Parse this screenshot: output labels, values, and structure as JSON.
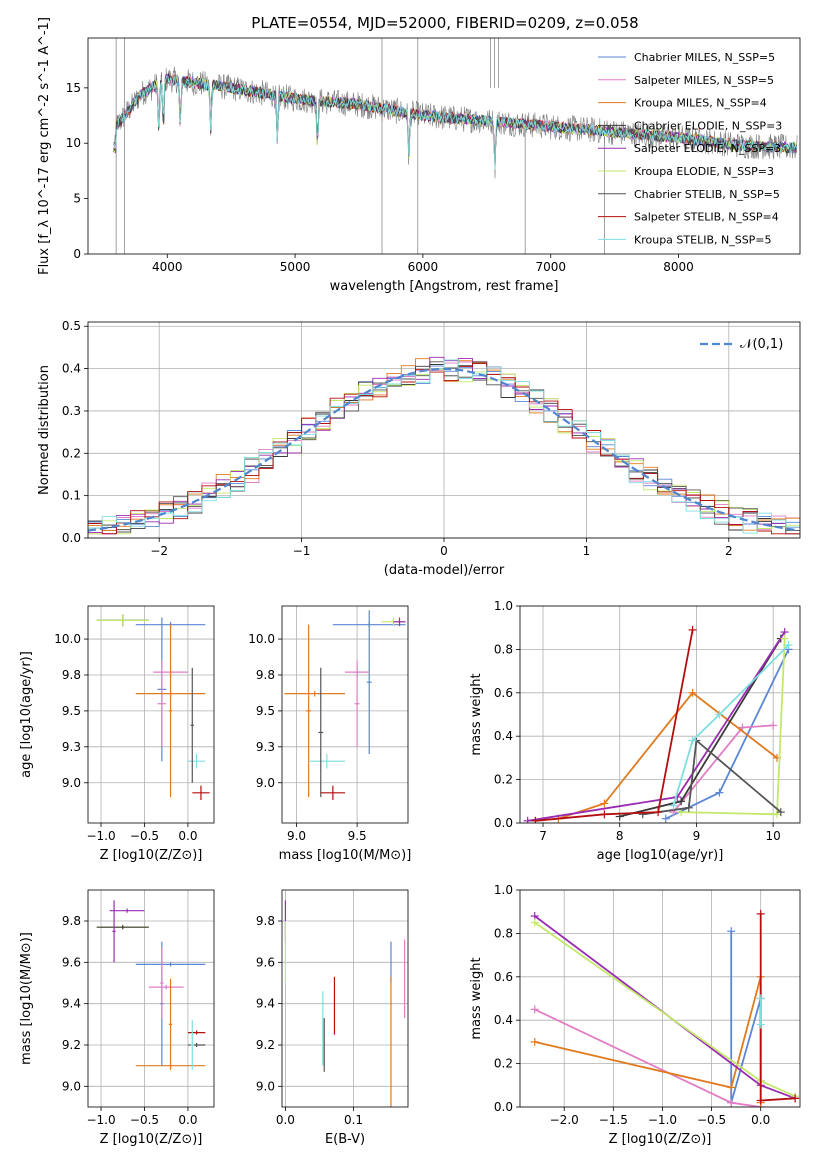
{
  "figure_title": "PLATE=0554, MJD=52000, FIBERID=0209, z=0.058",
  "series_colors": [
    "#5b86d6",
    "#e17ec4",
    "#e07a1f",
    "#3a3a3a",
    "#9a2bb3",
    "#c3e86a",
    "#555555",
    "#b30f0f",
    "#7fdedf"
  ],
  "chart_data": [
    {
      "id": "spectrum",
      "type": "line",
      "title": "PLATE=0554, MJD=52000, FIBERID=0209, z=0.058",
      "xlabel": "wavelength [Angstrom, rest frame]",
      "ylabel": "Flux [f_λ 10^-17 erg cm^-2 s^-1 A^-1]",
      "xlim": [
        3380,
        8950
      ],
      "ylim": [
        0,
        19.5
      ],
      "xticks": [
        4000,
        5000,
        6000,
        7000,
        8000
      ],
      "yticks": [
        0,
        5,
        10,
        15
      ],
      "legend": [
        "Chabrier MILES, N_SSP=5",
        "Salpeter MILES, N_SSP=5",
        "Kroupa MILES, N_SSP=4",
        "Chabrier ELODIE, N_SSP=3",
        "Salpeter ELODIE, N_SSP=3",
        "Kroupa ELODIE, N_SSP=3",
        "Chabrier STELIB, N_SSP=5",
        "Salpeter STELIB, N_SSP=4",
        "Kroupa STELIB, N_SSP=5"
      ],
      "legend_loc": "upper right",
      "continuum": {
        "x": [
          3600,
          3800,
          4000,
          4500,
          5000,
          5500,
          6000,
          6500,
          7000,
          7500,
          8000,
          8500,
          8900
        ],
        "y": [
          11.5,
          14.5,
          15.8,
          15.0,
          14.0,
          13.5,
          12.5,
          12.0,
          11.5,
          11.0,
          10.5,
          9.8,
          9.6
        ]
      },
      "grid": false
    },
    {
      "id": "residuals",
      "type": "step-histogram",
      "xlabel": "(data-model)/error",
      "ylabel": "Normed distribution",
      "xlim": [
        -2.5,
        2.5
      ],
      "ylim": [
        0,
        0.51
      ],
      "xticks": [
        -2,
        -1,
        0,
        1,
        2
      ],
      "yticks": [
        0.0,
        0.1,
        0.2,
        0.3,
        0.4,
        0.5
      ],
      "reference_label": "𝒩(0,1)",
      "reference_color": "#4f86d0",
      "bin_width": 0.1,
      "grid": true
    },
    {
      "id": "age-vs-Z",
      "type": "errorbar",
      "xlabel": "Z [log10(Z/Z⊙)]",
      "ylabel": "age  [log10(age/yr)]",
      "xlim": [
        -1.15,
        0.3
      ],
      "ylim": [
        8.72,
        10.23
      ],
      "xticks": [
        -1.0,
        -0.5,
        0.0
      ],
      "yticks": [
        9.0,
        9.25,
        9.5,
        9.75,
        10.0
      ],
      "grid": true,
      "points": [
        {
          "x": -0.2,
          "xe": 0.4,
          "y": 10.1,
          "ye": 0.02,
          "c": 0
        },
        {
          "x": -0.3,
          "xe": 0.05,
          "y": 9.65,
          "ye": 0.5,
          "c": 0
        },
        {
          "x": -0.2,
          "xe": 0.2,
          "y": 9.77,
          "ye": 0.04,
          "c": 1
        },
        {
          "x": -0.3,
          "xe": 0.05,
          "y": 9.55,
          "ye": 0.3,
          "c": 1
        },
        {
          "x": -0.2,
          "xe": 0.4,
          "y": 9.62,
          "ye": 0.02,
          "c": 2
        },
        {
          "x": -0.2,
          "xe": 0.02,
          "y": 9.5,
          "ye": 0.6,
          "c": 2
        },
        {
          "x": -0.75,
          "xe": 0.3,
          "y": 10.13,
          "ye": 0.04,
          "c": 3
        },
        {
          "x": -0.75,
          "xe": 0.3,
          "y": 10.13,
          "ye": 0.04,
          "c": 5
        },
        {
          "x": 0.1,
          "xe": 0.1,
          "y": 9.15,
          "ye": 0.05,
          "c": 8
        },
        {
          "x": 0.05,
          "xe": 0.02,
          "y": 9.4,
          "ye": 0.4,
          "c": 6
        },
        {
          "x": 0.15,
          "xe": 0.1,
          "y": 8.93,
          "ye": 0.05,
          "c": 7
        }
      ]
    },
    {
      "id": "age-vs-mass",
      "type": "errorbar",
      "xlabel": "mass [log10(M/M⊙)]",
      "ylabel": "",
      "xlim": [
        8.88,
        9.92
      ],
      "ylim": [
        8.72,
        10.23
      ],
      "xticks": [
        9.0,
        9.5
      ],
      "yticks": [
        9.0,
        9.25,
        9.5,
        9.75,
        10.0
      ],
      "grid": true,
      "points": [
        {
          "x": 9.6,
          "xe": 0.3,
          "y": 10.1,
          "ye": 0.02,
          "c": 0
        },
        {
          "x": 9.6,
          "xe": 0.02,
          "y": 9.7,
          "ye": 0.5,
          "c": 0
        },
        {
          "x": 9.5,
          "xe": 0.1,
          "y": 9.77,
          "ye": 0.04,
          "c": 1
        },
        {
          "x": 9.5,
          "xe": 0.02,
          "y": 9.55,
          "ye": 0.3,
          "c": 1
        },
        {
          "x": 9.15,
          "xe": 0.25,
          "y": 9.62,
          "ye": 0.02,
          "c": 2
        },
        {
          "x": 9.1,
          "xe": 0.02,
          "y": 9.5,
          "ye": 0.6,
          "c": 2
        },
        {
          "x": 9.8,
          "xe": 0.1,
          "y": 10.12,
          "ye": 0.03,
          "c": 5
        },
        {
          "x": 9.85,
          "xe": 0.05,
          "y": 10.12,
          "ye": 0.03,
          "c": 4
        },
        {
          "x": 9.25,
          "xe": 0.15,
          "y": 9.15,
          "ye": 0.05,
          "c": 8
        },
        {
          "x": 9.2,
          "xe": 0.02,
          "y": 9.35,
          "ye": 0.45,
          "c": 6
        },
        {
          "x": 9.3,
          "xe": 0.1,
          "y": 8.93,
          "ye": 0.05,
          "c": 7
        }
      ]
    },
    {
      "id": "weight-vs-age",
      "type": "line",
      "xlabel": "age  [log10(age/yr)]",
      "ylabel": "mass weight",
      "xlim": [
        6.7,
        10.35
      ],
      "ylim": [
        0,
        1
      ],
      "xticks": [
        7,
        8,
        9,
        10
      ],
      "yticks": [
        0.0,
        0.2,
        0.4,
        0.6,
        0.8,
        1.0
      ],
      "grid": true,
      "series": [
        {
          "c": 0,
          "x": [
            8.6,
            9.3,
            10.2
          ],
          "y": [
            0.02,
            0.14,
            0.8
          ]
        },
        {
          "c": 1,
          "x": [
            8.7,
            9.6,
            10.0
          ],
          "y": [
            0.05,
            0.44,
            0.45
          ]
        },
        {
          "c": 2,
          "x": [
            7.2,
            7.8,
            8.95,
            10.05
          ],
          "y": [
            0.02,
            0.09,
            0.6,
            0.3
          ]
        },
        {
          "c": 3,
          "x": [
            8.0,
            8.8,
            10.1
          ],
          "y": [
            0.03,
            0.1,
            0.85
          ]
        },
        {
          "c": 4,
          "x": [
            6.8,
            8.75,
            10.15
          ],
          "y": [
            0.01,
            0.12,
            0.88
          ]
        },
        {
          "c": 5,
          "x": [
            8.8,
            10.05,
            10.15
          ],
          "y": [
            0.05,
            0.04,
            0.85
          ]
        },
        {
          "c": 6,
          "x": [
            8.3,
            8.9,
            9.0,
            10.1
          ],
          "y": [
            0.04,
            0.07,
            0.38,
            0.05
          ]
        },
        {
          "c": 7,
          "x": [
            6.9,
            7.8,
            8.5,
            8.95
          ],
          "y": [
            0.01,
            0.04,
            0.05,
            0.89
          ]
        },
        {
          "c": 8,
          "x": [
            8.7,
            8.95,
            9.3,
            10.2
          ],
          "y": [
            0.08,
            0.38,
            0.5,
            0.82
          ]
        }
      ]
    },
    {
      "id": "mass-vs-Z",
      "type": "errorbar",
      "xlabel": "Z [log10(Z/Z⊙)]",
      "ylabel": "mass [log10(M/M⊙)]",
      "xlim": [
        -1.15,
        0.3
      ],
      "ylim": [
        8.9,
        9.95
      ],
      "xticks": [
        -1.0,
        -0.5,
        0.0
      ],
      "yticks": [
        9.0,
        9.2,
        9.4,
        9.6,
        9.8
      ],
      "grid": true,
      "points": [
        {
          "x": -0.2,
          "xe": 0.4,
          "y": 9.59,
          "ye": 0.01,
          "c": 0
        },
        {
          "x": -0.3,
          "xe": 0.02,
          "y": 9.4,
          "ye": 0.3,
          "c": 0
        },
        {
          "x": -0.25,
          "xe": 0.2,
          "y": 9.48,
          "ye": 0.01,
          "c": 1
        },
        {
          "x": -0.3,
          "xe": 0.02,
          "y": 9.5,
          "ye": 0.17,
          "c": 1
        },
        {
          "x": -0.2,
          "xe": 0.4,
          "y": 9.1,
          "ye": 0.01,
          "c": 2
        },
        {
          "x": -0.2,
          "xe": 0.02,
          "y": 9.3,
          "ye": 0.22,
          "c": 2
        },
        {
          "x": -0.75,
          "xe": 0.3,
          "y": 9.77,
          "ye": 0.01,
          "c": 5
        },
        {
          "x": -0.75,
          "xe": 0.3,
          "y": 9.77,
          "ye": 0.01,
          "c": 3
        },
        {
          "x": -0.7,
          "xe": 0.2,
          "y": 9.85,
          "ye": 0.01,
          "c": 4
        },
        {
          "x": -0.85,
          "xe": 0.02,
          "y": 9.75,
          "ye": 0.15,
          "c": 4
        },
        {
          "x": 0.1,
          "xe": 0.1,
          "y": 9.26,
          "ye": 0.01,
          "c": 7
        },
        {
          "x": 0.1,
          "xe": 0.1,
          "y": 9.2,
          "ye": 0.01,
          "c": 6
        },
        {
          "x": 0.05,
          "xe": 0.02,
          "y": 9.2,
          "ye": 0.12,
          "c": 8
        }
      ]
    },
    {
      "id": "mass-vs-EBV",
      "type": "errorbar",
      "xlabel": "E(B-V)",
      "ylabel": "",
      "xlim": [
        -0.005,
        0.18
      ],
      "ylim": [
        8.9,
        9.95
      ],
      "xticks": [
        0.0,
        0.1
      ],
      "yticks": [
        9.0,
        9.2,
        9.4,
        9.6,
        9.8
      ],
      "grid": true,
      "points": [
        {
          "x": 0.0,
          "xe": 0,
          "y": 9.8,
          "ye": 0.1,
          "c": 4
        },
        {
          "x": 0.0,
          "xe": 0,
          "y": 9.65,
          "ye": 0.15,
          "c": 5
        },
        {
          "x": 0.057,
          "xe": 0,
          "y": 9.2,
          "ye": 0.13,
          "c": 6
        },
        {
          "x": 0.055,
          "xe": 0,
          "y": 9.28,
          "ye": 0.18,
          "c": 8
        },
        {
          "x": 0.072,
          "xe": 0,
          "y": 9.39,
          "ye": 0.14,
          "c": 7
        },
        {
          "x": 0.155,
          "xe": 0,
          "y": 9.6,
          "ye": 0.1,
          "c": 0
        },
        {
          "x": 0.155,
          "xe": 0,
          "y": 9.2,
          "ye": 0.33,
          "c": 2
        },
        {
          "x": 0.175,
          "xe": 0,
          "y": 9.52,
          "ye": 0.19,
          "c": 1
        }
      ]
    },
    {
      "id": "weight-vs-Z",
      "type": "line",
      "xlabel": "Z [log10(Z/Z⊙)]",
      "ylabel": "mass weight",
      "xlim": [
        -2.45,
        0.4
      ],
      "ylim": [
        0,
        1
      ],
      "xticks": [
        -2.0,
        -1.5,
        -1.0,
        -0.5,
        0.0
      ],
      "yticks": [
        0.0,
        0.2,
        0.4,
        0.6,
        0.8,
        1.0
      ],
      "grid": true,
      "series": [
        {
          "c": 0,
          "x": [
            -0.3,
            -0.3,
            0.0,
            0.0
          ],
          "y": [
            0.81,
            0.02,
            0.5,
            0.12
          ]
        },
        {
          "c": 1,
          "x": [
            -2.3,
            -0.3,
            0.0
          ],
          "y": [
            0.45,
            0.02,
            0.0
          ]
        },
        {
          "c": 2,
          "x": [
            -2.3,
            -0.3,
            0.0,
            0.0
          ],
          "y": [
            0.3,
            0.09,
            0.6,
            0.02
          ]
        },
        {
          "c": 4,
          "x": [
            -2.3,
            0.0,
            0.35
          ],
          "y": [
            0.88,
            0.1,
            0.04
          ]
        },
        {
          "c": 5,
          "x": [
            -2.3,
            0.0,
            0.35
          ],
          "y": [
            0.85,
            0.12,
            0.05
          ]
        },
        {
          "c": 7,
          "x": [
            0.0,
            0.0,
            0.35
          ],
          "y": [
            0.89,
            0.03,
            0.04
          ]
        },
        {
          "c": 8,
          "x": [
            0.0,
            0.0
          ],
          "y": [
            0.5,
            0.38
          ]
        }
      ]
    }
  ]
}
